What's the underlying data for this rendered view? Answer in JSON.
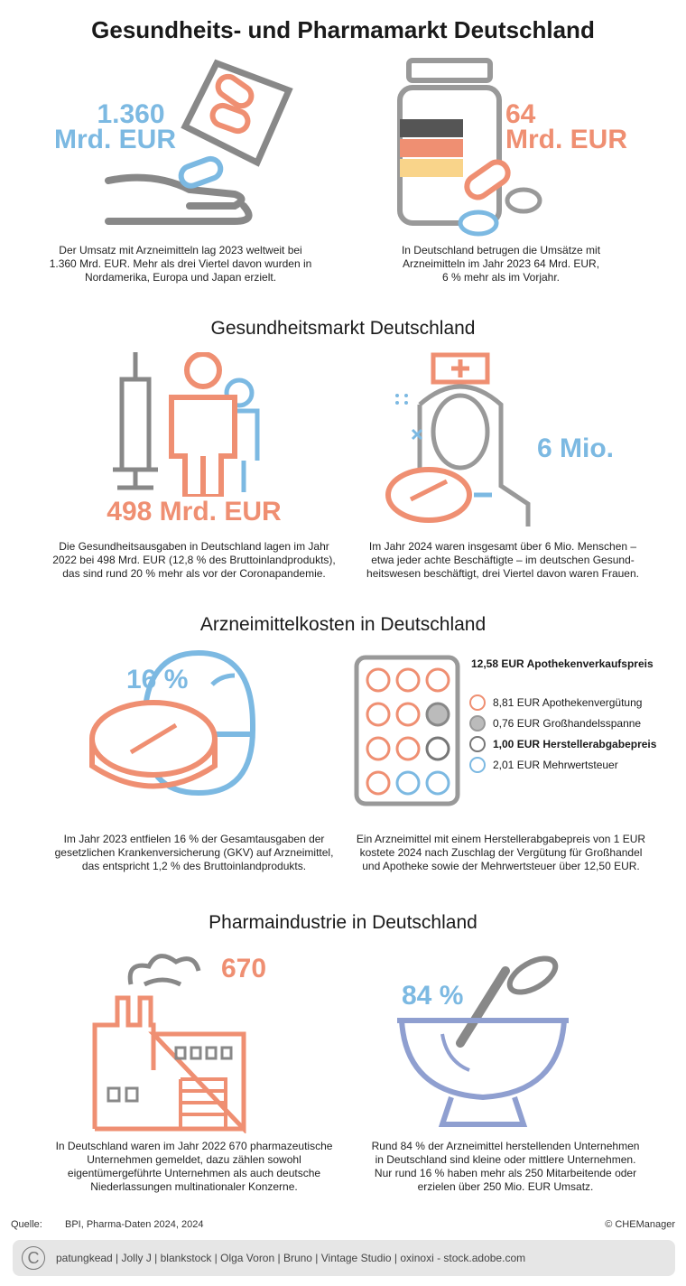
{
  "title": "Gesundheits- und Pharmamarkt Deutschland",
  "colors": {
    "blue": "#7cb9e2",
    "orange": "#ef8f72",
    "gray": "#999999",
    "purple": "#8f9fd0"
  },
  "s1": {
    "left_value": "1.360",
    "left_unit": "Mrd. EUR",
    "left_text": [
      "Der Umsatz mit Arzneimitteln lag 2023 weltweit bei",
      "1.360 Mrd. EUR. Mehr als drei Viertel davon wurden in",
      "Nordamerika, Europa und Japan erzielt."
    ],
    "right_value": "64",
    "right_unit": "Mrd. EUR",
    "right_text": [
      "In Deutschland betrugen die Umsätze mit",
      "Arzneimitteln im Jahr 2023 64 Mrd. EUR,",
      "6 % mehr als im Vorjahr."
    ]
  },
  "s2": {
    "heading": "Gesundheitsmarkt Deutschland",
    "left_value": "498 Mrd. EUR",
    "left_text": [
      "Die Gesundheitsausgaben in Deutschland lagen im Jahr",
      "2022 bei 498 Mrd. EUR (12,8 % des Bruttoinlandprodukts),",
      "das sind rund 20 % mehr als vor der Coronapandemie."
    ],
    "right_value": "6 Mio.",
    "right_text": [
      "Im Jahr 2024 waren insgesamt über 6 Mio. Menschen –",
      "etwa jeder achte Beschäftigte – im deutschen Gesund-",
      "heitswesen beschäftigt, drei Viertel davon waren Frauen."
    ]
  },
  "s3": {
    "heading": "Arzneimittelkosten in Deutschland",
    "left_value": "16 %",
    "left_text": [
      "Im Jahr 2023 entfielen 16 % der Gesamtausgaben der",
      "gesetzlichen Krankenversicherung (GKV) auf Arzneimittel,",
      "das entspricht 1,2 % des Bruttoinlandprodukts."
    ],
    "legend_title": "12,58 EUR Apothekenverkaufspreis",
    "legend": [
      {
        "label": "8,81 EUR Apothekenvergütung",
        "color": "#ef8f72"
      },
      {
        "label": "0,76 EUR Großhandelsspanne",
        "color": "#999999"
      },
      {
        "label": "1,00 EUR Herstellerabgabepreis",
        "color": "#777777"
      },
      {
        "label": "2,01 EUR Mehrwertsteuer",
        "color": "#7cb9e2"
      }
    ],
    "right_text": [
      "Ein Arzneimittel mit einem Herstellerabgabepreis von 1 EUR",
      "kostete 2024 nach Zuschlag der Vergütung für Großhandel",
      "und Apotheke sowie der Mehrwertsteuer über 12,50 EUR."
    ]
  },
  "s4": {
    "heading": "Pharmaindustrie in Deutschland",
    "left_value": "670",
    "left_text": [
      "In Deutschland waren im Jahr 2022 670 pharmazeutische",
      "Unternehmen gemeldet, dazu zählen sowohl",
      "eigentümergeführte Unternehmen als auch deutsche",
      "Niederlassungen multinationaler Konzerne."
    ],
    "right_value": "84 %",
    "right_text": [
      "Rund 84 % der Arzneimittel herstellenden Unternehmen",
      "in Deutschland sind kleine oder mittlere Unternehmen.",
      "Nur rund 16 % haben mehr als 250 Mitarbeitende oder",
      "erzielen über 250 Mio. EUR Umsatz."
    ]
  },
  "footer": {
    "source_label": "Quelle:",
    "source": "BPI, Pharma-Daten 2024, 2024",
    "copyright": "© CHEManager",
    "credit_icon": "copyright-icon",
    "credits": "patungkead | Jolly J | blankstock | Olga Voron | Bruno | Vintage Studio | oxinoxi - stock.adobe.com"
  }
}
